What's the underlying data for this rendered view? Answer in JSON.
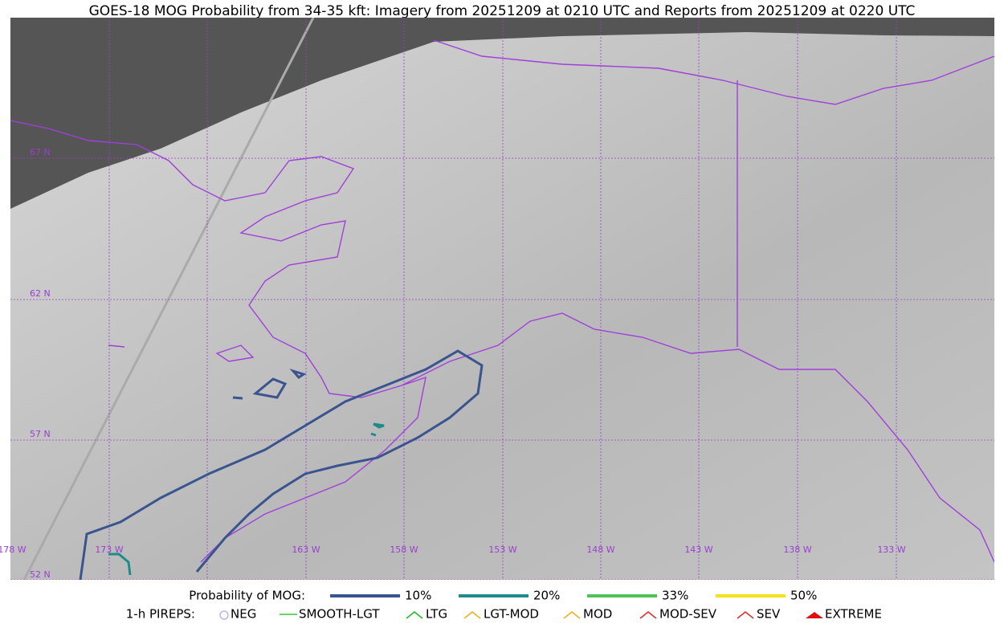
{
  "title": "GOES-18 MOG Probability from 34-35 kft: Imagery from 20251209 at 0210 UTC and Reports from 20251209 at 0220 UTC",
  "lat_labels": [
    "67 N",
    "62 N",
    "57 N",
    "52 N"
  ],
  "lon_labels": [
    "178 W",
    "173 W",
    "163 W",
    "158 W",
    "153 W",
    "148 W",
    "143 W",
    "138 W",
    "133 W"
  ],
  "probability_legend": {
    "title": "Probability of MOG:",
    "items": [
      {
        "name": "10%",
        "color": "#3a5490"
      },
      {
        "name": "20%",
        "color": "#1f8b8a"
      },
      {
        "name": "33%",
        "color": "#4cc257"
      },
      {
        "name": "50%",
        "color": "#f5e31a"
      }
    ]
  },
  "pirep_legend": {
    "title": "1-h PIREPS:",
    "items": [
      {
        "name": "NEG",
        "color": "#b8b8f0"
      },
      {
        "name": "SMOOTH-LGT",
        "color": "#33cc33"
      },
      {
        "name": "LTG",
        "color": "#22bb22"
      },
      {
        "name": "LGT-MOD",
        "color": "#f0b020"
      },
      {
        "name": "MOD",
        "color": "#f0b020"
      },
      {
        "name": "MOD-SEV",
        "color": "#e03030"
      },
      {
        "name": "SEV",
        "color": "#e03030"
      },
      {
        "name": "EXTREME",
        "color": "#e01010"
      }
    ]
  }
}
